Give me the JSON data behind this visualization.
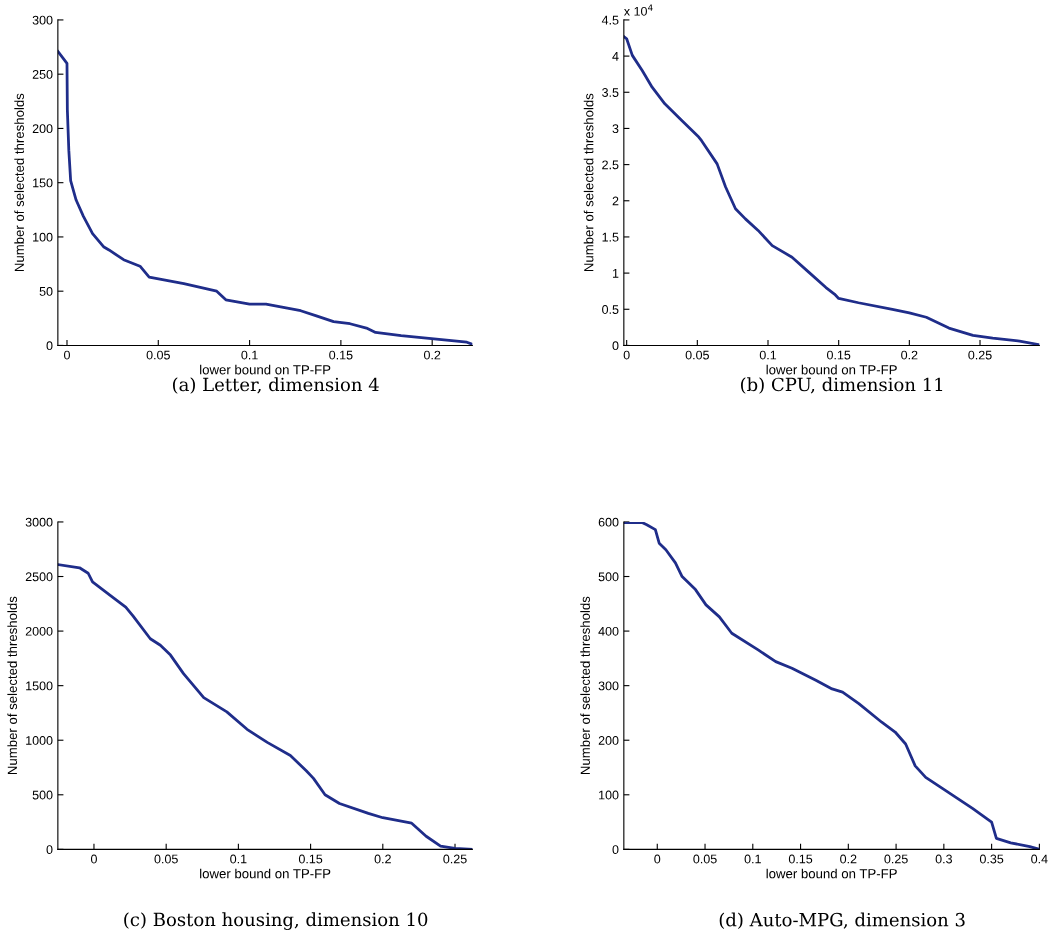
{
  "chart_data": [
    {
      "type": "line",
      "title": "(a) Letter, dimension 4",
      "xlabel": "lower bound on TP-FP",
      "ylabel": "Number of selected thresholds",
      "series": [
        {
          "color": "#1f2d8a",
          "x": [
            -0.005,
            0,
            0.0002,
            0.001,
            0.002,
            0.005,
            0.009,
            0.014,
            0.02,
            0.023,
            0.031,
            0.04,
            0.045,
            0.064,
            0.082,
            0.087,
            0.1,
            0.109,
            0.128,
            0.137,
            0.146,
            0.155,
            0.164,
            0.169,
            0.183,
            0.201,
            0.219,
            0.222
          ],
          "values": [
            271,
            260,
            217,
            180,
            152,
            134,
            119,
            103,
            91,
            88,
            79,
            73,
            63,
            57,
            50,
            42,
            38,
            38,
            32,
            27,
            22,
            20,
            16,
            12,
            9,
            6,
            3,
            1
          ]
        }
      ],
      "xlim": [
        -0.005,
        0.222
      ],
      "xticks": [
        0,
        0.05,
        0.1,
        0.15,
        0.2
      ],
      "ylim": [
        0,
        300
      ],
      "yticks": [
        0,
        50,
        100,
        150,
        200,
        250,
        300
      ],
      "grid": false,
      "legend": false
    },
    {
      "type": "line",
      "title": "(b) CPU, dimension 11",
      "xlabel": "lower bound on TP-FP",
      "ylabel": "Number of selected thresholds",
      "annotations": [
        "x 10$^{4}$"
      ],
      "series": [
        {
          "color": "#1f2d8a",
          "x": [
            -0.002,
            0,
            0.004,
            0.011,
            0.018,
            0.027,
            0.039,
            0.051,
            0.053,
            0.064,
            0.07,
            0.077,
            0.084,
            0.093,
            0.103,
            0.117,
            0.129,
            0.141,
            0.147,
            0.15,
            0.164,
            0.188,
            0.2,
            0.212,
            0.228,
            0.245,
            0.259,
            0.278,
            0.292
          ],
          "values": [
            4.27,
            4.24,
            4.01,
            3.8,
            3.57,
            3.34,
            3.11,
            2.88,
            2.83,
            2.51,
            2.19,
            1.89,
            1.75,
            1.59,
            1.38,
            1.22,
            1.01,
            0.8,
            0.71,
            0.65,
            0.59,
            0.5,
            0.45,
            0.39,
            0.24,
            0.14,
            0.1,
            0.06,
            0.01
          ]
        }
      ],
      "xlim": [
        -0.002,
        0.292
      ],
      "xticks": [
        0,
        0.05,
        0.1,
        0.15,
        0.2,
        0.25
      ],
      "ylim": [
        0,
        4.5
      ],
      "yticks": [
        0,
        0.5,
        1,
        1.5,
        2,
        2.5,
        3,
        3.5,
        4,
        4.5
      ],
      "grid": false,
      "legend": false
    },
    {
      "type": "line",
      "title": "(c) Boston housing, dimension 10",
      "xlabel": "lower bound on TP-FP",
      "ylabel": "Number of selected thresholds",
      "series": [
        {
          "color": "#1f2d8a",
          "x": [
            -0.025,
            -0.01,
            -0.004,
            -0.001,
            0.011,
            0.022,
            0.027,
            0.039,
            0.046,
            0.053,
            0.062,
            0.076,
            0.092,
            0.106,
            0.12,
            0.136,
            0.147,
            0.152,
            0.16,
            0.17,
            0.19,
            0.2,
            0.22,
            0.23,
            0.24,
            0.25,
            0.262
          ],
          "values": [
            2610,
            2580,
            2530,
            2450,
            2330,
            2220,
            2140,
            1930,
            1870,
            1780,
            1610,
            1390,
            1260,
            1100,
            980,
            860,
            720,
            650,
            500,
            420,
            330,
            290,
            240,
            120,
            30,
            10,
            0
          ]
        }
      ],
      "xlim": [
        -0.025,
        0.262
      ],
      "xticks": [
        0,
        0.05,
        0.1,
        0.15,
        0.2,
        0.25
      ],
      "ylim": [
        0,
        3000
      ],
      "yticks": [
        0,
        500,
        1000,
        1500,
        2000,
        2500,
        3000
      ],
      "grid": false,
      "legend": false
    },
    {
      "type": "line",
      "title": "(d) Auto-MPG, dimension 3",
      "xlabel": "lower bound on TP-FP",
      "ylabel": "Number of selected thresholds",
      "series": [
        {
          "color": "#1f2d8a",
          "x": [
            -0.035,
            -0.016,
            -0.011,
            -0.002,
            0.002,
            0.009,
            0.019,
            0.026,
            0.04,
            0.051,
            0.065,
            0.078,
            0.106,
            0.124,
            0.141,
            0.166,
            0.183,
            0.194,
            0.211,
            0.235,
            0.249,
            0.26,
            0.27,
            0.281,
            0.3,
            0.33,
            0.35,
            0.355,
            0.37,
            0.39,
            0.4
          ],
          "values": [
            599,
            599,
            595,
            586,
            561,
            549,
            525,
            500,
            476,
            448,
            426,
            396,
            365,
            344,
            332,
            310,
            294,
            288,
            267,
            233,
            215,
            193,
            153,
            132,
            110,
            75,
            50,
            20,
            12,
            5,
            0
          ]
        }
      ],
      "xlim": [
        -0.035,
        0.4
      ],
      "xticks": [
        0,
        0.05,
        0.1,
        0.15,
        0.2,
        0.25,
        0.3,
        0.35,
        0.4
      ],
      "ylim": [
        0,
        600
      ],
      "yticks": [
        0,
        100,
        200,
        300,
        400,
        500,
        600
      ],
      "grid": false,
      "legend": false
    }
  ]
}
